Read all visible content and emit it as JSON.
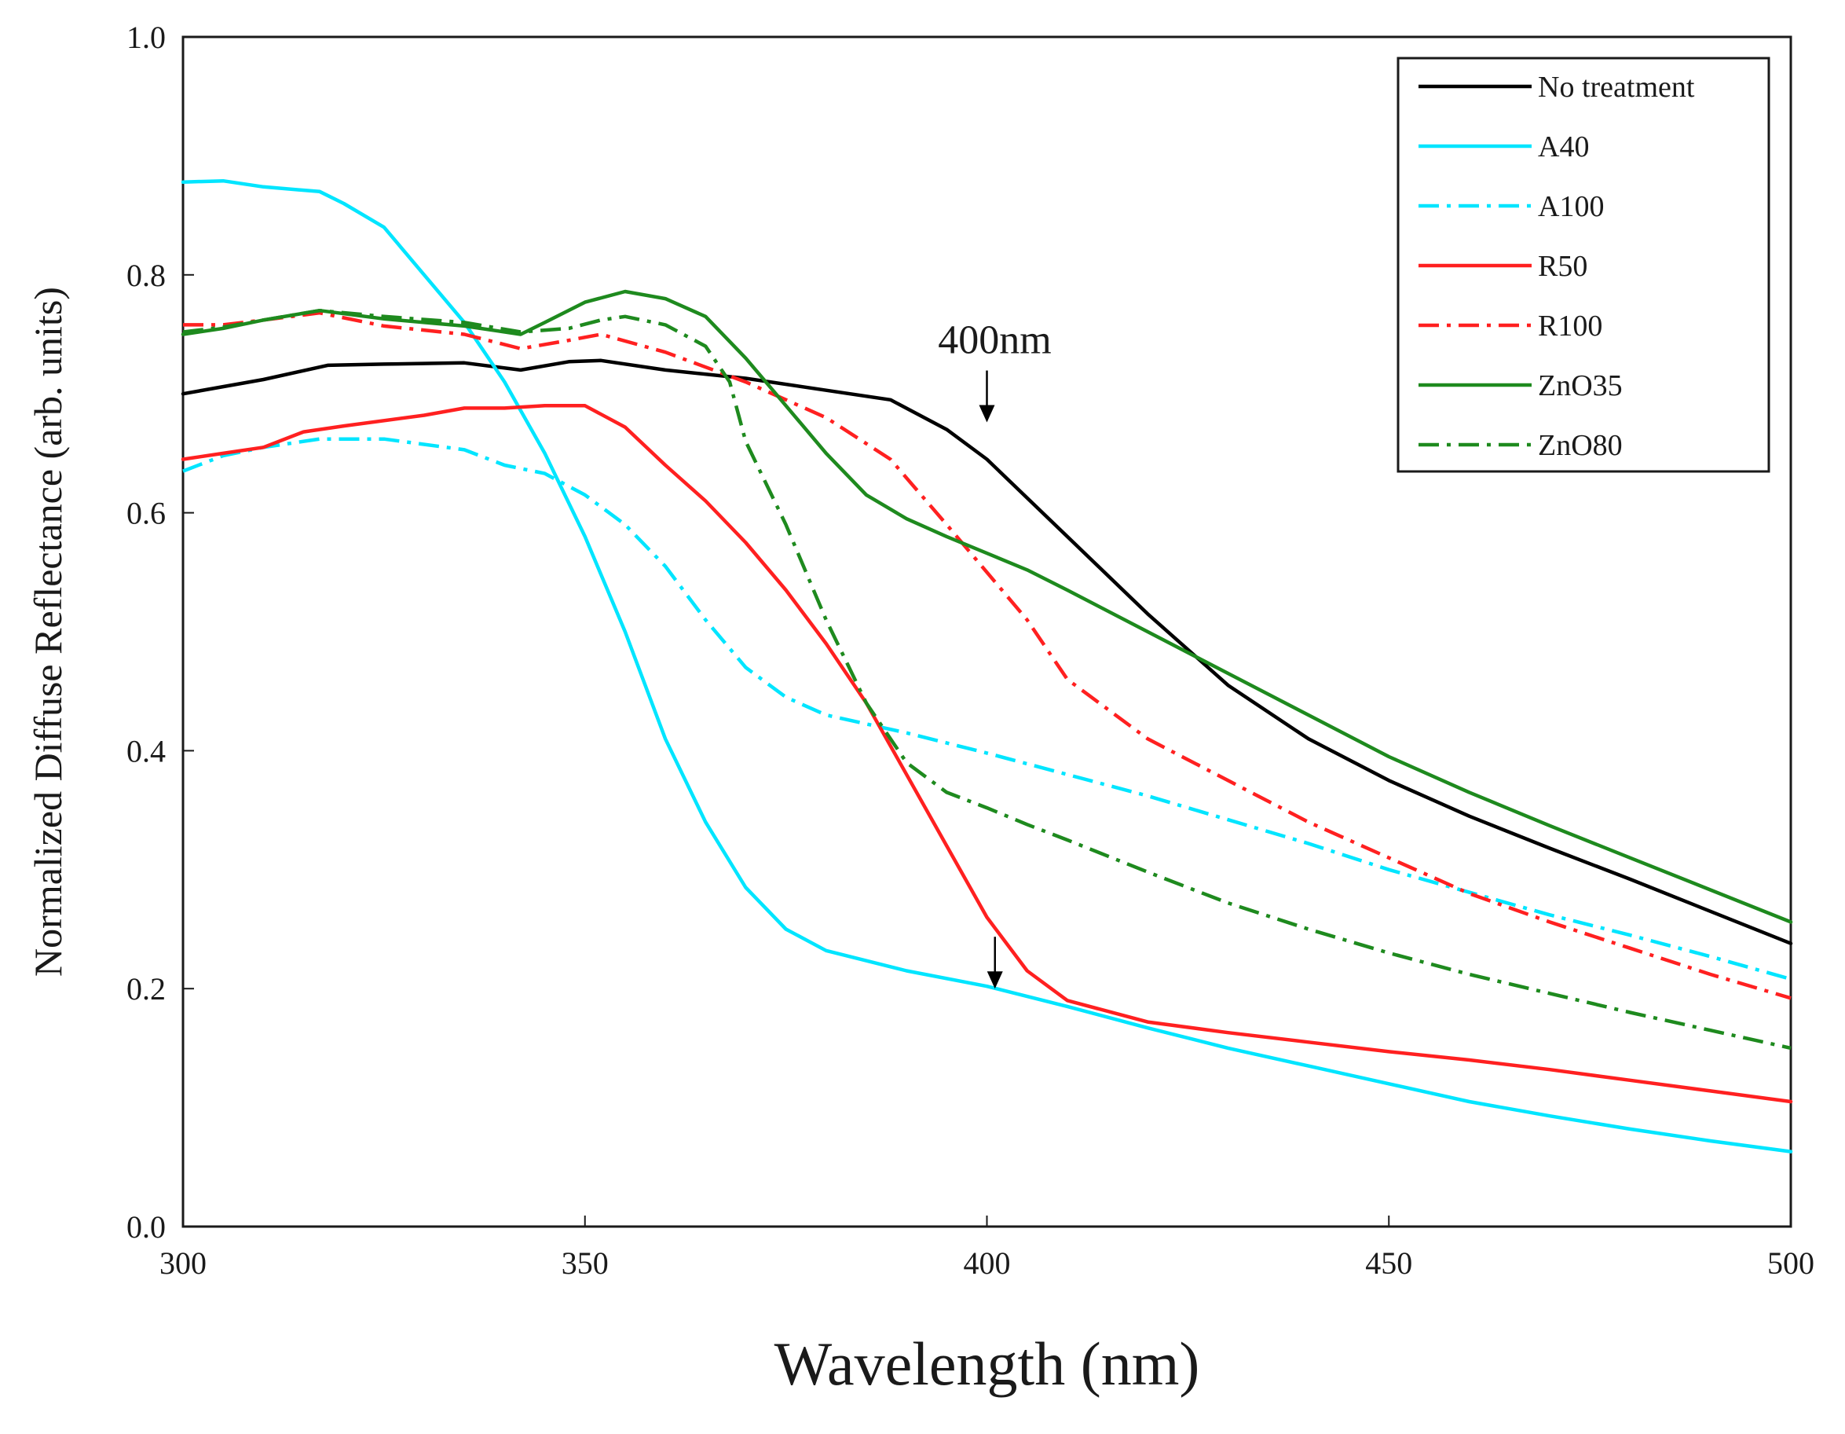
{
  "chart_data": {
    "type": "line",
    "title": "",
    "xlabel": "Wavelength (nm)",
    "ylabel": "Normalized Diffuse Reflectance (arb. units)",
    "xlim": [
      300,
      500
    ],
    "ylim": [
      0.0,
      1.0
    ],
    "grid": false,
    "legend_position": "top-right",
    "x_ticks": [
      {
        "value": 300,
        "label": "300"
      },
      {
        "value": 350,
        "label": "350"
      },
      {
        "value": 400,
        "label": "400"
      },
      {
        "value": 450,
        "label": "450"
      },
      {
        "value": 500,
        "label": "500"
      }
    ],
    "y_ticks": [
      {
        "value": 0.0,
        "label": "0.0"
      },
      {
        "value": 0.2,
        "label": "0.2"
      },
      {
        "value": 0.4,
        "label": "0.4"
      },
      {
        "value": 0.6,
        "label": "0.6"
      },
      {
        "value": 0.8,
        "label": "0.8"
      },
      {
        "value": 1.0,
        "label": "1.0"
      }
    ],
    "series": [
      {
        "name": "No treatment",
        "color": "#000000",
        "dash": "solid",
        "x": [
          300,
          310,
          318,
          325,
          335,
          342,
          348,
          352,
          360,
          370,
          380,
          388,
          395,
          400,
          410,
          420,
          430,
          440,
          450,
          460,
          470,
          480,
          490,
          500
        ],
        "y": [
          0.7,
          0.712,
          0.724,
          0.725,
          0.726,
          0.72,
          0.727,
          0.728,
          0.72,
          0.713,
          0.703,
          0.695,
          0.67,
          0.645,
          0.58,
          0.515,
          0.455,
          0.41,
          0.375,
          0.345,
          0.318,
          0.292,
          0.265,
          0.238
        ]
      },
      {
        "name": "A40",
        "color": "#00e5ff",
        "dash": "solid",
        "x": [
          300,
          305,
          310,
          317,
          320,
          325,
          330,
          335,
          340,
          345,
          350,
          355,
          360,
          365,
          370,
          375,
          380,
          390,
          400,
          410,
          420,
          430,
          440,
          450,
          460,
          470,
          480,
          490,
          500
        ],
        "y": [
          0.878,
          0.879,
          0.874,
          0.87,
          0.86,
          0.84,
          0.8,
          0.76,
          0.71,
          0.65,
          0.58,
          0.5,
          0.41,
          0.34,
          0.285,
          0.25,
          0.232,
          0.215,
          0.202,
          0.185,
          0.167,
          0.15,
          0.135,
          0.12,
          0.105,
          0.093,
          0.082,
          0.072,
          0.063
        ]
      },
      {
        "name": "A100",
        "color": "#00e5ff",
        "dash": "dashdot",
        "x": [
          300,
          305,
          310,
          317,
          325,
          335,
          340,
          345,
          350,
          355,
          360,
          365,
          370,
          375,
          380,
          390,
          400,
          410,
          420,
          430,
          440,
          450,
          460,
          470,
          480,
          490,
          500
        ],
        "y": [
          0.635,
          0.648,
          0.655,
          0.662,
          0.662,
          0.653,
          0.64,
          0.633,
          0.615,
          0.59,
          0.555,
          0.51,
          0.47,
          0.445,
          0.43,
          0.415,
          0.398,
          0.38,
          0.362,
          0.342,
          0.322,
          0.3,
          0.281,
          0.262,
          0.245,
          0.227,
          0.208
        ]
      },
      {
        "name": "R50",
        "color": "#ff2020",
        "dash": "solid",
        "x": [
          300,
          305,
          310,
          315,
          320,
          330,
          335,
          340,
          345,
          350,
          355,
          360,
          365,
          370,
          375,
          380,
          385,
          390,
          395,
          400,
          405,
          410,
          420,
          430,
          440,
          450,
          460,
          470,
          480,
          490,
          500
        ],
        "y": [
          0.645,
          0.65,
          0.655,
          0.668,
          0.673,
          0.682,
          0.688,
          0.688,
          0.69,
          0.69,
          0.672,
          0.64,
          0.61,
          0.575,
          0.535,
          0.49,
          0.44,
          0.38,
          0.32,
          0.26,
          0.215,
          0.19,
          0.172,
          0.163,
          0.155,
          0.147,
          0.14,
          0.132,
          0.123,
          0.114,
          0.105
        ]
      },
      {
        "name": "R100",
        "color": "#ff2020",
        "dash": "dashdot",
        "x": [
          300,
          305,
          310,
          317,
          325,
          335,
          342,
          348,
          352,
          360,
          370,
          380,
          388,
          395,
          400,
          405,
          410,
          420,
          430,
          440,
          450,
          460,
          470,
          480,
          490,
          500
        ],
        "y": [
          0.758,
          0.758,
          0.762,
          0.768,
          0.757,
          0.75,
          0.738,
          0.745,
          0.75,
          0.735,
          0.71,
          0.68,
          0.645,
          0.59,
          0.55,
          0.51,
          0.46,
          0.41,
          0.375,
          0.34,
          0.31,
          0.28,
          0.256,
          0.234,
          0.212,
          0.192
        ]
      },
      {
        "name": "ZnO35",
        "color": "#1e8a1e",
        "dash": "solid",
        "x": [
          300,
          305,
          310,
          317,
          325,
          335,
          342,
          345,
          350,
          355,
          360,
          365,
          370,
          375,
          380,
          385,
          390,
          395,
          400,
          405,
          410,
          420,
          430,
          440,
          450,
          460,
          470,
          480,
          490,
          500
        ],
        "y": [
          0.75,
          0.755,
          0.762,
          0.77,
          0.763,
          0.757,
          0.75,
          0.76,
          0.777,
          0.786,
          0.78,
          0.765,
          0.73,
          0.69,
          0.65,
          0.615,
          0.595,
          0.58,
          0.566,
          0.552,
          0.535,
          0.5,
          0.465,
          0.43,
          0.395,
          0.365,
          0.337,
          0.31,
          0.283,
          0.256
        ]
      },
      {
        "name": "ZnO80",
        "color": "#1e8a1e",
        "dash": "dashdot",
        "x": [
          300,
          305,
          310,
          317,
          325,
          335,
          342,
          348,
          352,
          355,
          360,
          365,
          368,
          370,
          375,
          380,
          385,
          390,
          395,
          400,
          405,
          410,
          420,
          430,
          440,
          450,
          460,
          470,
          480,
          490,
          500
        ],
        "y": [
          0.752,
          0.756,
          0.762,
          0.77,
          0.765,
          0.76,
          0.752,
          0.755,
          0.762,
          0.765,
          0.758,
          0.74,
          0.71,
          0.66,
          0.59,
          0.51,
          0.44,
          0.39,
          0.365,
          0.352,
          0.338,
          0.325,
          0.298,
          0.272,
          0.25,
          0.23,
          0.212,
          0.196,
          0.18,
          0.165,
          0.15
        ]
      }
    ],
    "annotations": [
      {
        "text": "400nm",
        "x": 400,
        "y": 0.676,
        "arrow": "down"
      },
      {
        "text": "",
        "x": 401,
        "y": 0.2,
        "arrow": "down"
      }
    ]
  }
}
